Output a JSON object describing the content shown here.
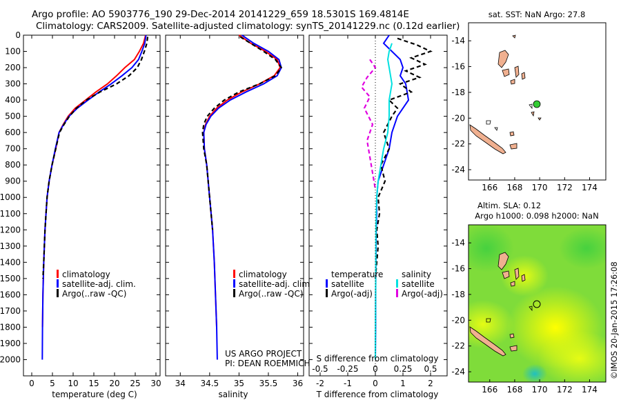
{
  "header": {
    "line1": "Argo profile: AO 5903776_190 29-Dec-2014 20141229_659 18.5301S 169.4814E",
    "line2": "Climatology: CARS2009. Satellite-adjusted climatology: synTS_20141229.nc (0.12d earlier)"
  },
  "watermark": "©IMOS 20-Jan-2015 17:26:08",
  "chart_data": [
    {
      "type": "line",
      "panel": "temperature",
      "xlabel": "temperature (deg C)",
      "xlim": [
        -2,
        31
      ],
      "xticks": [
        0,
        5,
        10,
        15,
        20,
        25,
        30
      ],
      "ylim": [
        0,
        2100
      ],
      "yticks": [
        0,
        100,
        200,
        300,
        400,
        500,
        600,
        700,
        800,
        900,
        1000,
        1100,
        1200,
        1300,
        1400,
        1500,
        1600,
        1700,
        1800,
        1900,
        2000
      ],
      "y_reversed": true,
      "legend": [
        "climatology",
        "satellite-adj. clim.",
        "Argo(..raw -QC)"
      ],
      "legend_position": "lower-middle",
      "series": [
        {
          "name": "climatology",
          "color": "#ff0000",
          "style": "solid",
          "x": [
            27.5,
            27.0,
            26.0,
            24.8,
            22.5,
            20.5,
            18.3,
            15.5,
            13.0,
            10.5,
            8.8,
            7.6,
            6.6,
            5.8,
            4.9,
            4.2,
            3.7,
            3.2,
            2.9,
            2.7,
            2.6
          ],
          "y": [
            0,
            50,
            100,
            150,
            200,
            250,
            300,
            350,
            400,
            450,
            500,
            550,
            600,
            700,
            800,
            900,
            1000,
            1200,
            1400,
            1600,
            1800
          ]
        },
        {
          "name": "satellite-adj. clim.",
          "color": "#0000ff",
          "style": "solid",
          "x": [
            27.6,
            27.3,
            26.6,
            25.8,
            24.2,
            21.8,
            19.2,
            16.3,
            13.6,
            11.0,
            9.0,
            7.7,
            6.6,
            5.7,
            4.9,
            4.2,
            3.7,
            3.2,
            2.9,
            2.7,
            2.6,
            2.55
          ],
          "y": [
            0,
            50,
            100,
            150,
            200,
            250,
            300,
            350,
            400,
            450,
            500,
            550,
            600,
            700,
            800,
            900,
            1000,
            1200,
            1400,
            1600,
            1800,
            2000
          ]
        },
        {
          "name": "Argo(..raw -QC)",
          "color": "#000000",
          "style": "dashed",
          "x": [
            28.0,
            27.8,
            27.2,
            26.5,
            25.5,
            23.5,
            20.5,
            16.5,
            13.2,
            10.8,
            9.1,
            7.8,
            6.7,
            5.8,
            4.9,
            4.2,
            3.7,
            3.2,
            2.9,
            2.7
          ],
          "y": [
            10,
            50,
            100,
            150,
            200,
            250,
            300,
            350,
            400,
            450,
            500,
            550,
            600,
            700,
            800,
            900,
            1000,
            1200,
            1400,
            1500
          ]
        }
      ]
    },
    {
      "type": "line",
      "panel": "salinity",
      "xlabel": "salinity",
      "xlim": [
        33.75,
        36.1
      ],
      "xticks": [
        34,
        34.5,
        35,
        35.5,
        36
      ],
      "ylim": [
        0,
        2100
      ],
      "y_reversed": true,
      "legend": [
        "climatology",
        "satellite-adj. clim.",
        "Argo(..raw -QC)"
      ],
      "legend_position": "lower-middle",
      "annotation": [
        "US ARGO PROJECT",
        "PI: DEAN ROEMMICH"
      ],
      "series": [
        {
          "name": "climatology",
          "color": "#ff0000",
          "style": "solid",
          "x": [
            35.0,
            35.2,
            35.45,
            35.65,
            35.7,
            35.6,
            35.35,
            35.05,
            34.8,
            34.62,
            34.5,
            34.43,
            34.4,
            34.41,
            34.45,
            34.5,
            34.55,
            34.58,
            34.6,
            34.62
          ],
          "y": [
            0,
            50,
            100,
            150,
            200,
            250,
            300,
            350,
            400,
            450,
            500,
            550,
            600,
            700,
            800,
            1000,
            1200,
            1400,
            1600,
            1800
          ]
        },
        {
          "name": "satellite-adj. clim.",
          "color": "#0000ff",
          "style": "solid",
          "x": [
            35.05,
            35.25,
            35.5,
            35.68,
            35.72,
            35.65,
            35.42,
            35.12,
            34.85,
            34.65,
            34.52,
            34.44,
            34.4,
            34.41,
            34.45,
            34.5,
            34.55,
            34.58,
            34.6,
            34.62,
            34.63
          ],
          "y": [
            0,
            50,
            100,
            150,
            200,
            250,
            300,
            350,
            400,
            450,
            500,
            550,
            600,
            700,
            800,
            1000,
            1200,
            1400,
            1600,
            1800,
            2000
          ]
        },
        {
          "name": "Argo(..raw -QC)",
          "color": "#000000",
          "style": "dashed",
          "x": [
            35.02,
            35.2,
            35.42,
            35.62,
            35.72,
            35.62,
            35.35,
            35.0,
            34.75,
            34.58,
            34.46,
            34.4,
            34.38,
            34.4,
            34.45,
            34.5,
            34.55
          ],
          "y": [
            10,
            50,
            100,
            150,
            200,
            250,
            300,
            350,
            400,
            450,
            500,
            550,
            600,
            700,
            800,
            1000,
            1200
          ]
        }
      ]
    },
    {
      "type": "line",
      "panel": "difference",
      "xlabel": "T difference from climatology",
      "top_xlabel": "S difference from climatology",
      "xlim": [
        -2.4,
        2.6
      ],
      "xticks": [
        -2,
        -1,
        0,
        1,
        2
      ],
      "top_ticks": [
        -0.5,
        -0.25,
        0,
        0.25,
        0.5
      ],
      "ylim": [
        0,
        2100
      ],
      "y_reversed": true,
      "legend_titles": [
        "temperature",
        "salinity"
      ],
      "legend": [
        "satellite",
        "Argo(-adj)",
        "satellite",
        "Argo(-adj)"
      ],
      "legend_position": "lower-middle",
      "series": [
        {
          "name": "satellite",
          "group": "temperature",
          "color": "#0000ff",
          "style": "solid",
          "x": [
            0.5,
            0.3,
            0.6,
            0.9,
            1.0,
            0.9,
            1.1,
            1.2,
            0.8,
            0.6,
            0.5,
            0.3,
            0.1,
            0.05,
            0.05,
            0.03,
            0.02,
            0.01,
            0.01,
            0.0
          ],
          "y": [
            0,
            50,
            100,
            150,
            200,
            250,
            300,
            400,
            500,
            600,
            700,
            800,
            900,
            1000,
            1100,
            1200,
            1400,
            1600,
            1800,
            2000
          ]
        },
        {
          "name": "Argo(-adj)",
          "group": "temperature",
          "color": "#000000",
          "style": "dashed",
          "x": [
            0.8,
            1.5,
            2.0,
            1.3,
            1.8,
            1.1,
            1.6,
            0.9,
            1.3,
            0.5,
            0.8,
            0.6,
            0.3,
            0.5,
            0.2,
            0.35,
            0.1,
            0.15,
            0.05,
            0.1,
            0.0
          ],
          "y": [
            20,
            60,
            100,
            140,
            180,
            220,
            260,
            300,
            350,
            400,
            450,
            500,
            600,
            700,
            800,
            900,
            1000,
            1100,
            1200,
            1300,
            1500
          ]
        },
        {
          "name": "satellite",
          "group": "salinity",
          "color": "#00e0e0",
          "style": "solid",
          "x": [
            0.6,
            0.5,
            0.45,
            0.5,
            0.55,
            0.6,
            0.5,
            0.5,
            0.45,
            0.3,
            0.2,
            0.1,
            0.05,
            0.02,
            0.01,
            0.0
          ],
          "y": [
            50,
            100,
            150,
            200,
            250,
            300,
            400,
            500,
            600,
            700,
            800,
            900,
            1000,
            1200,
            1600,
            2000
          ]
        },
        {
          "name": "Argo(-adj)",
          "group": "salinity",
          "color": "#e000e0",
          "style": "dashed",
          "x": [
            -0.2,
            0.0,
            -0.3,
            -0.5,
            -0.2,
            -0.4,
            -0.1,
            -0.3,
            -0.2,
            -0.1,
            0.0
          ],
          "y": [
            150,
            200,
            260,
            320,
            380,
            450,
            550,
            650,
            750,
            850,
            950
          ]
        }
      ]
    },
    {
      "type": "map",
      "panel": "sst-map",
      "title": "sat. SST: NaN Argo: 27.8",
      "xticks": [
        166,
        168,
        170,
        172,
        174
      ],
      "yticks": [
        -14,
        -16,
        -18,
        -20,
        -22,
        -24
      ],
      "xlim": [
        164.3,
        175.3
      ],
      "ylim": [
        -24.8,
        -12.6
      ],
      "argo_position": {
        "lon": 169.48,
        "lat": -18.53
      },
      "argo_marker_color": "#33cc33"
    },
    {
      "type": "heatmap",
      "panel": "sla-map",
      "title": "Altim. SLA: 0.12",
      "subtitle": "Argo h1000: 0.098 h2000: NaN",
      "xticks": [
        166,
        168,
        170,
        172,
        174
      ],
      "yticks": [
        -14,
        -16,
        -18,
        -20,
        -22,
        -24
      ],
      "xlim": [
        164.3,
        175.3
      ],
      "ylim": [
        -24.8,
        -12.6
      ],
      "argo_position": {
        "lon": 169.48,
        "lat": -18.53
      }
    }
  ]
}
